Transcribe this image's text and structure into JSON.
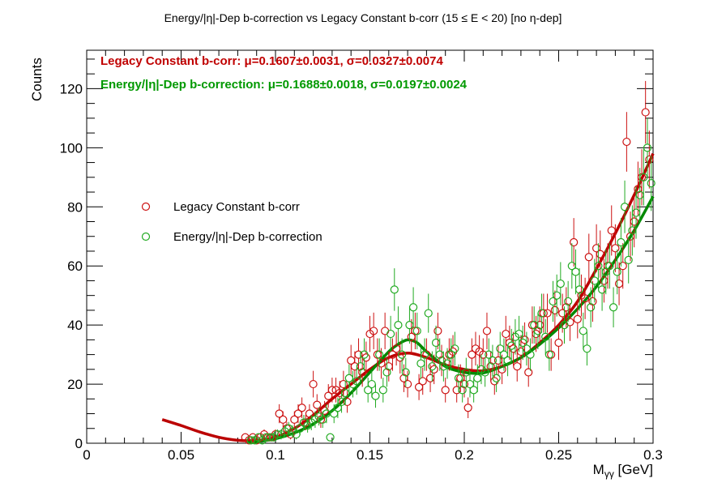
{
  "chart_data": {
    "type": "scatter",
    "title": "Energy/|η|-Dep b-correction vs Legacy Constant b-corr   (15 ≤ E < 20)   [no η-dep]",
    "xlabel": "M",
    "xlabel_sub": "γγ",
    "xlabel_unit": " [GeV]",
    "ylabel": "Counts",
    "xlim": [
      0,
      0.3
    ],
    "ylim": [
      0,
      133
    ],
    "xticks": [
      {
        "value": 0,
        "label": "0"
      },
      {
        "value": 0.05,
        "label": "0.05"
      },
      {
        "value": 0.1,
        "label": "0.1"
      },
      {
        "value": 0.15,
        "label": "0.15"
      },
      {
        "value": 0.2,
        "label": "0.2"
      },
      {
        "value": 0.25,
        "label": "0.25"
      },
      {
        "value": 0.3,
        "label": "0.3"
      }
    ],
    "yticks": [
      {
        "value": 0,
        "label": "0"
      },
      {
        "value": 20,
        "label": "20"
      },
      {
        "value": 40,
        "label": "40"
      },
      {
        "value": 60,
        "label": "60"
      },
      {
        "value": 80,
        "label": "80"
      },
      {
        "value": 100,
        "label": "100"
      },
      {
        "value": 120,
        "label": "120"
      }
    ],
    "grid": false,
    "legend_position": "left-middle",
    "annotations": [
      {
        "text": "Legacy Constant b-corr: μ=0.1607±0.0031, σ=0.0327±0.0074",
        "color": "#c00000"
      },
      {
        "text": "Energy/|η|-Dep b-correction: μ=0.1688±0.0018, σ=0.0197±0.0024",
        "color": "#009900"
      }
    ],
    "series": [
      {
        "name": "Legacy Constant b-corr",
        "color": "#cc1111",
        "x": [
          0.084,
          0.086,
          0.088,
          0.09,
          0.092,
          0.094,
          0.096,
          0.098,
          0.1,
          0.102,
          0.104,
          0.106,
          0.108,
          0.11,
          0.112,
          0.114,
          0.116,
          0.118,
          0.12,
          0.122,
          0.124,
          0.126,
          0.128,
          0.13,
          0.132,
          0.134,
          0.136,
          0.138,
          0.14,
          0.142,
          0.144,
          0.146,
          0.148,
          0.15,
          0.152,
          0.154,
          0.156,
          0.158,
          0.16,
          0.162,
          0.164,
          0.166,
          0.168,
          0.17,
          0.172,
          0.174,
          0.176,
          0.178,
          0.18,
          0.182,
          0.184,
          0.186,
          0.188,
          0.19,
          0.192,
          0.194,
          0.196,
          0.198,
          0.2,
          0.202,
          0.204,
          0.206,
          0.208,
          0.21,
          0.212,
          0.214,
          0.216,
          0.218,
          0.22,
          0.222,
          0.224,
          0.226,
          0.228,
          0.23,
          0.232,
          0.234,
          0.236,
          0.238,
          0.24,
          0.242,
          0.244,
          0.246,
          0.248,
          0.25,
          0.252,
          0.254,
          0.256,
          0.258,
          0.26,
          0.262,
          0.264,
          0.266,
          0.268,
          0.27,
          0.272,
          0.274,
          0.276,
          0.278,
          0.28,
          0.282,
          0.284,
          0.286,
          0.288,
          0.29,
          0.292,
          0.294,
          0.296,
          0.298
        ],
        "y": [
          2,
          1,
          2,
          1,
          2,
          3,
          2,
          2,
          3,
          10,
          8,
          5,
          3,
          8,
          10,
          12,
          7,
          10,
          20,
          13,
          8,
          11,
          16,
          18,
          18,
          17,
          20,
          14,
          28,
          26,
          30,
          24,
          29,
          37,
          38,
          30,
          27,
          38,
          26,
          30,
          32,
          29,
          22,
          20,
          36,
          38,
          19,
          21,
          30,
          22,
          25,
          38,
          28,
          18,
          30,
          31,
          18,
          22,
          20,
          12,
          30,
          32,
          31,
          30,
          38,
          26,
          21,
          28,
          25,
          37,
          34,
          32,
          26,
          31,
          35,
          24,
          40,
          37,
          40,
          44,
          44,
          30,
          45,
          34,
          44,
          46,
          41,
          68,
          42,
          50,
          49,
          63,
          48,
          66,
          64,
          55,
          60,
          72,
          66,
          54,
          60,
          102,
          70,
          75,
          86,
          90,
          112,
          96
        ],
        "err": [
          1.4,
          1,
          1.4,
          1,
          1.4,
          1.7,
          1.4,
          1.4,
          1.7,
          3.2,
          2.8,
          2.2,
          1.7,
          2.8,
          3.2,
          3.5,
          2.6,
          3.2,
          4.5,
          3.6,
          2.8,
          3.3,
          4,
          4.2,
          4.2,
          4.1,
          4.5,
          3.7,
          5.3,
          5.1,
          5.5,
          4.9,
          5.4,
          6.1,
          6.2,
          5.5,
          5.2,
          6.2,
          5.1,
          5.5,
          5.7,
          5.4,
          4.7,
          4.5,
          6,
          6.2,
          4.4,
          4.6,
          5.5,
          4.7,
          5,
          6.2,
          5.3,
          4.2,
          5.5,
          5.6,
          4.2,
          4.7,
          4.5,
          3.5,
          5.5,
          5.7,
          5.6,
          5.5,
          6.2,
          5.1,
          4.6,
          5.3,
          5,
          6.1,
          5.8,
          5.7,
          5.1,
          5.6,
          5.9,
          4.9,
          6.3,
          6.1,
          6.3,
          6.6,
          6.6,
          5.5,
          6.7,
          5.8,
          6.6,
          6.8,
          6.4,
          8.2,
          6.5,
          7.1,
          7,
          7.9,
          6.9,
          8.1,
          8,
          7.4,
          7.7,
          8.5,
          8.1,
          7.3,
          7.7,
          10.1,
          8.4,
          8.7,
          9.3,
          9.5,
          10.6,
          9.8
        ]
      },
      {
        "name": "Energy/|η|-Dep b-correction",
        "color": "#22aa22",
        "x": [
          0.087,
          0.089,
          0.091,
          0.093,
          0.095,
          0.097,
          0.099,
          0.101,
          0.103,
          0.105,
          0.107,
          0.109,
          0.111,
          0.113,
          0.115,
          0.117,
          0.119,
          0.121,
          0.123,
          0.125,
          0.127,
          0.129,
          0.131,
          0.133,
          0.135,
          0.137,
          0.139,
          0.141,
          0.143,
          0.145,
          0.147,
          0.149,
          0.151,
          0.153,
          0.155,
          0.157,
          0.159,
          0.161,
          0.163,
          0.165,
          0.167,
          0.169,
          0.171,
          0.173,
          0.175,
          0.177,
          0.179,
          0.181,
          0.183,
          0.185,
          0.187,
          0.189,
          0.191,
          0.193,
          0.195,
          0.197,
          0.199,
          0.201,
          0.203,
          0.205,
          0.207,
          0.209,
          0.211,
          0.213,
          0.215,
          0.217,
          0.219,
          0.221,
          0.223,
          0.225,
          0.227,
          0.229,
          0.231,
          0.233,
          0.235,
          0.237,
          0.239,
          0.241,
          0.243,
          0.245,
          0.247,
          0.249,
          0.251,
          0.253,
          0.255,
          0.257,
          0.259,
          0.261,
          0.263,
          0.265,
          0.267,
          0.269,
          0.271,
          0.273,
          0.275,
          0.277,
          0.279,
          0.281,
          0.283,
          0.285,
          0.287,
          0.289,
          0.291,
          0.293,
          0.295,
          0.297,
          0.299
        ],
        "y": [
          1,
          1,
          2,
          1,
          2,
          2,
          2,
          3,
          3,
          4,
          5,
          4,
          3,
          5,
          7,
          6,
          7,
          8,
          9,
          8,
          10,
          2,
          10,
          12,
          14,
          17,
          22,
          20,
          21,
          26,
          30,
          18,
          20,
          16,
          30,
          18,
          24,
          37,
          52,
          40,
          30,
          24,
          40,
          46,
          38,
          27,
          30,
          44,
          26,
          34,
          30,
          26,
          27,
          30,
          32,
          22,
          18,
          24,
          20,
          18,
          22,
          25,
          24,
          30,
          28,
          22,
          32,
          30,
          28,
          33,
          36,
          37,
          34,
          32,
          30,
          40,
          38,
          44,
          36,
          30,
          48,
          50,
          54,
          40,
          48,
          60,
          58,
          52,
          38,
          32,
          46,
          55,
          60,
          52,
          58,
          60,
          46,
          58,
          68,
          80,
          62,
          72,
          78,
          84,
          90,
          100,
          88
        ],
        "err": [
          1,
          1,
          1.4,
          1,
          1.4,
          1.4,
          1.4,
          1.7,
          1.7,
          2,
          2.2,
          2,
          1.7,
          2.2,
          2.6,
          2.4,
          2.6,
          2.8,
          3,
          2.8,
          3.2,
          1.4,
          3.2,
          3.5,
          3.7,
          4.1,
          4.7,
          4.5,
          4.6,
          5.1,
          5.5,
          4.2,
          4.5,
          4,
          5.5,
          4.2,
          4.9,
          6.1,
          7.2,
          6.3,
          5.5,
          4.9,
          6.3,
          6.8,
          6.2,
          5.2,
          5.5,
          6.6,
          5.1,
          5.8,
          5.5,
          5.1,
          5.2,
          5.5,
          5.7,
          4.7,
          4.2,
          4.9,
          4.5,
          4.2,
          4.7,
          5,
          4.9,
          5.5,
          5.3,
          4.7,
          5.7,
          5.5,
          5.3,
          5.7,
          6,
          6.1,
          5.8,
          5.7,
          5.5,
          6.3,
          6.2,
          6.6,
          6,
          5.5,
          6.9,
          7.1,
          7.3,
          6.3,
          6.9,
          7.7,
          7.6,
          7.2,
          6.2,
          5.7,
          6.8,
          7.4,
          7.7,
          7.2,
          7.6,
          7.7,
          6.8,
          7.6,
          8.2,
          8.9,
          7.9,
          8.5,
          8.8,
          9.2,
          9.5,
          10,
          9.4
        ]
      }
    ],
    "fits": [
      {
        "name": "Legacy Constant b-corr fit",
        "color": "#bb0000",
        "x": [
          0.04,
          0.05,
          0.06,
          0.07,
          0.08,
          0.09,
          0.1,
          0.11,
          0.12,
          0.13,
          0.14,
          0.15,
          0.16,
          0.17,
          0.18,
          0.19,
          0.2,
          0.21,
          0.22,
          0.23,
          0.24,
          0.25,
          0.26,
          0.27,
          0.28,
          0.29,
          0.3
        ],
        "y": [
          8,
          6,
          3.8,
          2,
          1,
          0.9,
          2,
          5,
          9.5,
          15,
          20,
          25,
          29,
          30.5,
          29,
          26.5,
          25,
          24.5,
          26,
          29,
          34,
          40,
          48,
          59,
          71,
          84,
          98
        ]
      },
      {
        "name": "Energy/|η|-Dep b-correction fit",
        "color": "#008800",
        "x": [
          0.085,
          0.09,
          0.1,
          0.11,
          0.12,
          0.13,
          0.14,
          0.15,
          0.16,
          0.165,
          0.17,
          0.175,
          0.18,
          0.19,
          0.2,
          0.21,
          0.22,
          0.23,
          0.24,
          0.25,
          0.26,
          0.27,
          0.28,
          0.29,
          0.3
        ],
        "y": [
          0.2,
          0.5,
          1.5,
          3.5,
          6.5,
          11,
          17,
          24,
          31,
          33.5,
          35,
          34,
          31,
          26,
          24,
          23.8,
          26,
          29,
          33.5,
          39,
          45.5,
          53,
          62,
          72,
          83.5
        ]
      }
    ]
  }
}
